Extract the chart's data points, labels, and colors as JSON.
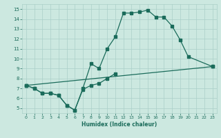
{
  "xlabel": "Humidex (Indice chaleur)",
  "line1_x": [
    0,
    1,
    2,
    3,
    4,
    5,
    6,
    7,
    8,
    9,
    10,
    11,
    12,
    13,
    14,
    15,
    16,
    17,
    18,
    19,
    20,
    23
  ],
  "line1_y": [
    7.3,
    7.0,
    6.5,
    6.5,
    6.3,
    5.3,
    4.8,
    7.0,
    9.5,
    9.0,
    11.0,
    12.2,
    14.6,
    14.6,
    14.7,
    14.9,
    14.2,
    14.2,
    13.3,
    11.9,
    10.2,
    9.2
  ],
  "line2_x": [
    0,
    1,
    2,
    3,
    4,
    5,
    6,
    7,
    8,
    9,
    10,
    11
  ],
  "line2_y": [
    7.3,
    7.0,
    6.5,
    6.5,
    6.3,
    5.3,
    4.8,
    6.9,
    7.3,
    7.5,
    8.0,
    8.5
  ],
  "line3_x": [
    0,
    23
  ],
  "line3_y": [
    7.3,
    9.2
  ],
  "color": "#1a6b5a",
  "bg_color": "#cce8e0",
  "grid_color": "#aacfc8",
  "xlim": [
    -0.5,
    23.5
  ],
  "ylim": [
    4.5,
    15.5
  ],
  "yticks": [
    5,
    6,
    7,
    8,
    9,
    10,
    11,
    12,
    13,
    14,
    15
  ],
  "xticks": [
    0,
    1,
    2,
    3,
    4,
    5,
    6,
    7,
    8,
    9,
    10,
    11,
    12,
    13,
    14,
    15,
    16,
    17,
    18,
    19,
    20,
    21,
    22,
    23
  ]
}
